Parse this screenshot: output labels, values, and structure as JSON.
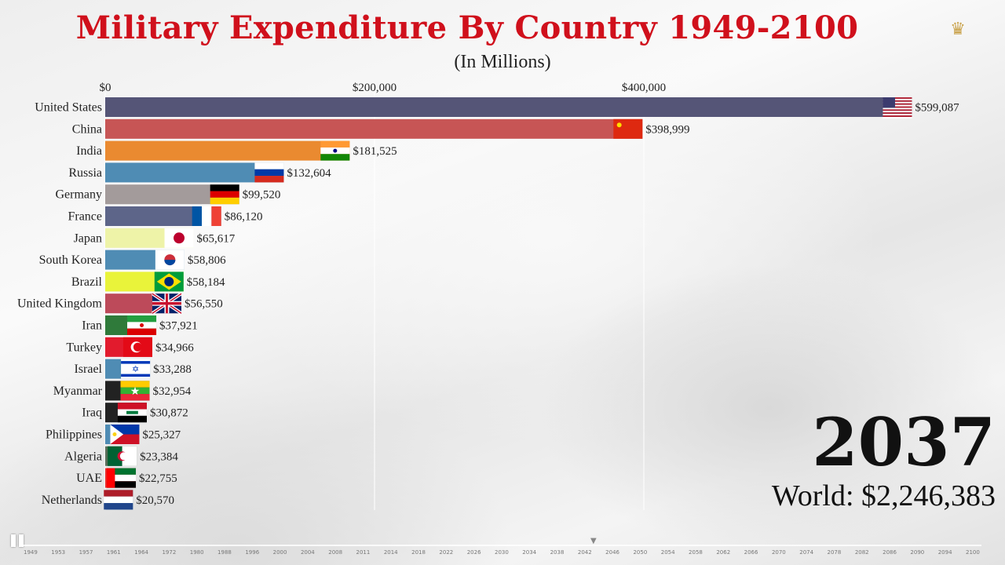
{
  "header": {
    "title": "Military Expenditure By Country 1949-2100",
    "subtitle": "(In Millions)"
  },
  "colors": {
    "title": "#d0101c",
    "gridline": "#ffffff"
  },
  "icons": [
    "logo-icon",
    "pause-icon",
    "flag-icons"
  ],
  "chart_data": {
    "type": "bar",
    "orientation": "horizontal",
    "title": "Military Expenditure By Country 1949-2100",
    "subtitle": "(In Millions)",
    "xlim": [
      0,
      640000
    ],
    "x_ticks": [
      0,
      200000,
      400000
    ],
    "x_tick_labels": [
      "$0",
      "$200,000",
      "$400,000"
    ],
    "grid": true,
    "categories": [
      "United States",
      "China",
      "India",
      "Russia",
      "Germany",
      "France",
      "Japan",
      "South Korea",
      "Brazil",
      "United Kingdom",
      "Iran",
      "Turkey",
      "Israel",
      "Myanmar",
      "Iraq",
      "Philippines",
      "Algeria",
      "UAE",
      "Netherlands"
    ],
    "values": [
      599087,
      398999,
      181525,
      132604,
      99520,
      86120,
      65617,
      58806,
      58184,
      56550,
      37921,
      34966,
      33288,
      32954,
      30872,
      25327,
      23384,
      22755,
      20570
    ],
    "value_labels": [
      "$599,087",
      "$398,999",
      "$181,525",
      "$132,604",
      "$99,520",
      "$86,120",
      "$65,617",
      "$58,806",
      "$58,184",
      "$56,550",
      "$37,921",
      "$34,966",
      "$33,288",
      "$32,954",
      "$30,872",
      "$25,327",
      "$23,384",
      "$22,755",
      "$20,570"
    ],
    "bar_colors": [
      "#555577",
      "#c75555",
      "#ea8a30",
      "#4f8cb4",
      "#a39b9b",
      "#5d6589",
      "#eef3a8",
      "#4f8cb4",
      "#e9f33a",
      "#bd4a5a",
      "#2f7a3a",
      "#e21b2d",
      "#4f8cb4",
      "#222222",
      "#222222",
      "#4f8cb4",
      "#5a6e5a",
      "#ea2a2a",
      "#4f8cb4"
    ],
    "flags": [
      "us",
      "cn",
      "in",
      "ru",
      "de",
      "fr",
      "jp",
      "kr",
      "br",
      "gb",
      "ir",
      "tr",
      "il",
      "mm",
      "iq",
      "ph",
      "dz",
      "ae",
      "nl"
    ]
  },
  "year": "2037",
  "world_total": "World: $2,246,383",
  "timeline_labels": [
    "1949",
    "1953",
    "1957",
    "1961",
    "1964",
    "1972",
    "1980",
    "1988",
    "1996",
    "2000",
    "2004",
    "2008",
    "2011",
    "2014",
    "2018",
    "2022",
    "2026",
    "2030",
    "2034",
    "2038",
    "2042",
    "2046",
    "2050",
    "2054",
    "2058",
    "2062",
    "2066",
    "2070",
    "2074",
    "2078",
    "2082",
    "2086",
    "2090",
    "2094",
    "2100"
  ]
}
